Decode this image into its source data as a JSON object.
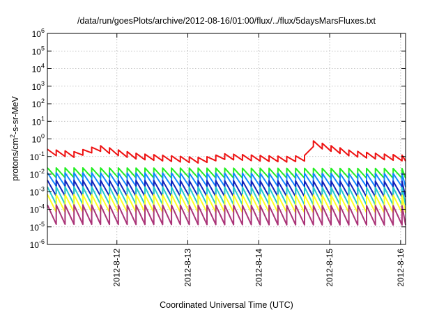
{
  "chart_data": {
    "type": "line",
    "title": "/data/run/goesPlots/archive/2012-08-16/01:00/flux/../flux/5daysMarsFluxes.txt",
    "xlabel": "Coordinated Universal Time (UTC)",
    "ylabel": {
      "base": "protons/cm",
      "sup": "2",
      "rest": "-s-sr-MeV"
    },
    "yscale": "log",
    "ylim_exp": [
      -6,
      6
    ],
    "y_ticks": [
      {
        "base": "10",
        "exp": "-6",
        "value": -6
      },
      {
        "base": "10",
        "exp": "-5",
        "value": -5
      },
      {
        "base": "10",
        "exp": "-4",
        "value": -4
      },
      {
        "base": "10",
        "exp": "-3",
        "value": -3
      },
      {
        "base": "10",
        "exp": "-2",
        "value": -2
      },
      {
        "base": "10",
        "exp": "-1",
        "value": -1
      },
      {
        "base": "10",
        "exp": "0",
        "value": 0
      },
      {
        "base": "10",
        "exp": "1",
        "value": 1
      },
      {
        "base": "10",
        "exp": "2",
        "value": 2
      },
      {
        "base": "10",
        "exp": "3",
        "value": 3
      },
      {
        "base": "10",
        "exp": "4",
        "value": 4
      },
      {
        "base": "10",
        "exp": "5",
        "value": 5
      },
      {
        "base": "10",
        "exp": "6",
        "value": 6
      }
    ],
    "x_ticks": [
      "2012-8-12",
      "2012-8-13",
      "2012-8-14",
      "2012-8-15",
      "2012-8-16"
    ],
    "xlim_days": [
      11.02,
      16.07
    ],
    "grid": true,
    "sawtooth_period_hours": 3,
    "series": [
      {
        "color": "#ee1111",
        "base": [
          [
            11.02,
            0.18
          ],
          [
            11.4,
            0.13
          ],
          [
            11.75,
            0.3
          ],
          [
            12.0,
            0.17
          ],
          [
            12.3,
            0.1
          ],
          [
            12.8,
            0.075
          ],
          [
            13.2,
            0.06
          ],
          [
            13.5,
            0.1
          ],
          [
            14.0,
            0.08
          ],
          [
            14.4,
            0.07
          ],
          [
            14.65,
            0.08
          ],
          [
            14.76,
            0.55
          ],
          [
            15.0,
            0.3
          ],
          [
            15.3,
            0.15
          ],
          [
            15.7,
            0.1
          ],
          [
            16.07,
            0.08
          ]
        ],
        "amp": 0.16,
        "peak_day": 14.76
      },
      {
        "color": "#22ee22",
        "base": [
          [
            11.02,
            0.012
          ],
          [
            16.07,
            0.011
          ]
        ],
        "amp": 0.28
      },
      {
        "color": "#1188ff",
        "base": [
          [
            11.02,
            0.005
          ],
          [
            16.07,
            0.0045
          ]
        ],
        "amp": 0.38
      },
      {
        "color": "#1122bb",
        "base": [
          [
            11.02,
            0.0016
          ],
          [
            16.07,
            0.0014
          ]
        ],
        "amp": 0.45
      },
      {
        "color": "#22cccc",
        "base": [
          [
            11.02,
            0.0006
          ],
          [
            16.07,
            0.00055
          ]
        ],
        "amp": 0.5
      },
      {
        "color": "#ffff22",
        "base": [
          [
            11.02,
            0.00022
          ],
          [
            16.07,
            0.0002
          ]
        ],
        "amp": 0.5
      },
      {
        "color": "#aa3377",
        "base": [
          [
            11.02,
            5e-05
          ],
          [
            16.07,
            4.5e-05
          ]
        ],
        "amp": 0.55
      }
    ]
  }
}
